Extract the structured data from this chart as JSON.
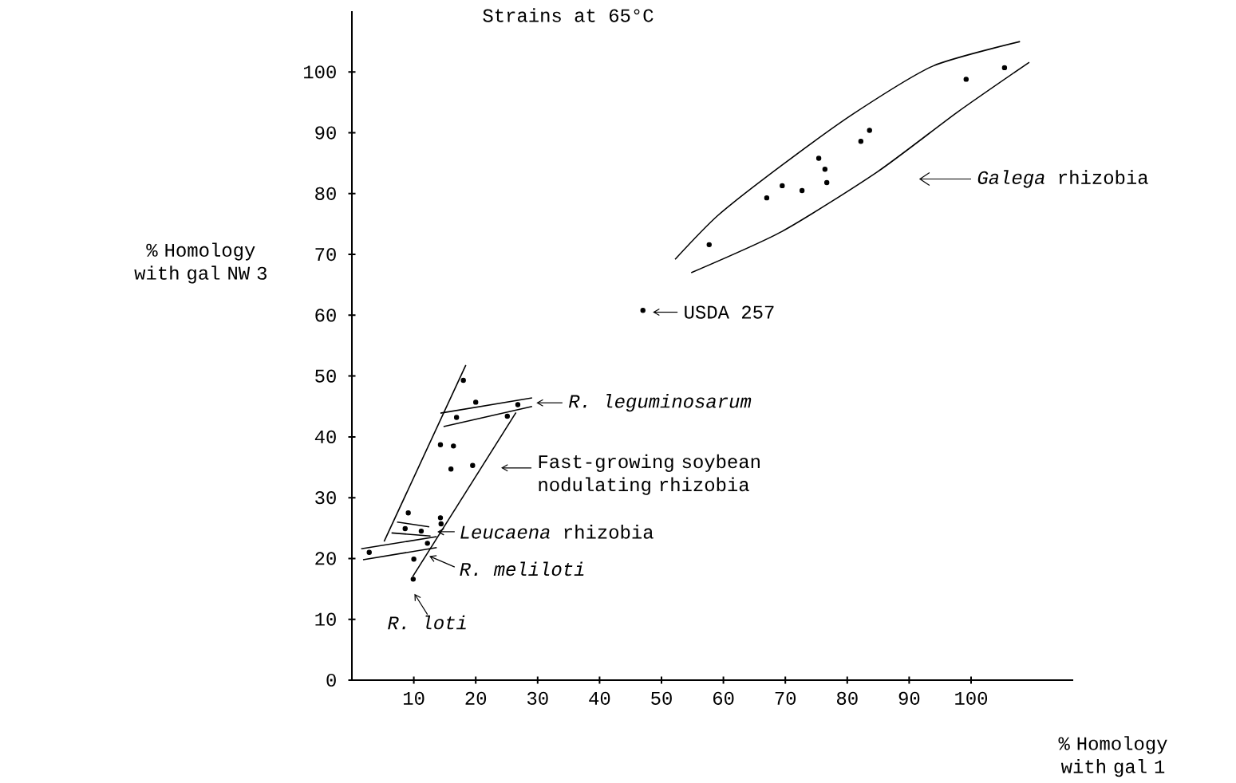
{
  "chart_data": {
    "type": "scatter",
    "title": "Strains at 65°C",
    "xlabel": "% Homology with gal 1",
    "ylabel": "% Homology with gal NW 3",
    "xlim": [
      0,
      116.5
    ],
    "ylim": [
      0,
      110
    ],
    "xticks": [
      10,
      20,
      30,
      40,
      50,
      60,
      70,
      80,
      90,
      100
    ],
    "yticks": [
      0,
      10,
      20,
      30,
      40,
      50,
      60,
      70,
      80,
      90,
      100
    ],
    "grid": false,
    "marker": "circle",
    "line_style": "solid",
    "series": [
      {
        "color": "#000000",
        "x": [
          18.0,
          20.0,
          26.8,
          16.9,
          25.1,
          14.3,
          16.4,
          16.0,
          19.5,
          9.1,
          14.3,
          14.4,
          8.6,
          11.2,
          12.2,
          2.8,
          10.0,
          9.9,
          47.0,
          57.7,
          67.0,
          69.5,
          72.7,
          75.4,
          76.4,
          76.7,
          82.2,
          83.6,
          99.2,
          105.4
        ],
        "values": [
          49.3,
          45.7,
          45.3,
          43.2,
          43.4,
          38.7,
          38.5,
          34.7,
          35.3,
          27.5,
          26.7,
          25.7,
          24.9,
          24.5,
          22.5,
          21.0,
          19.9,
          16.6,
          60.8,
          71.6,
          79.3,
          81.3,
          80.5,
          85.8,
          84.0,
          81.8,
          88.6,
          90.4,
          98.8,
          100.7
        ]
      },
      {
        "type": "line",
        "marker": "none",
        "color": "#000000",
        "x": [
          52.2,
          59.1,
          69.5,
          81.1,
          93.9,
          107.9
        ],
        "values": [
          69.2,
          76.4,
          84.7,
          93.2,
          101.0,
          105.0
        ]
      },
      {
        "type": "line",
        "marker": "none",
        "color": "#000000",
        "x": [
          54.8,
          69.5,
          84.9,
          97.8,
          109.4
        ],
        "values": [
          67.0,
          73.8,
          83.6,
          93.4,
          101.6
        ]
      },
      {
        "type": "line",
        "marker": "none",
        "color": "#000000",
        "x": [
          5.2,
          18.4
        ],
        "values": [
          22.8,
          51.8
        ]
      },
      {
        "type": "line",
        "marker": "none",
        "color": "#000000",
        "x": [
          9.8,
          26.5
        ],
        "values": [
          17.0,
          44.0
        ]
      },
      {
        "type": "line",
        "marker": "none",
        "color": "#000000",
        "x": [
          14.3,
          29.1
        ],
        "values": [
          43.9,
          46.4
        ]
      },
      {
        "type": "line",
        "marker": "none",
        "color": "#000000",
        "x": [
          14.8,
          29.1
        ],
        "values": [
          41.7,
          45.0
        ]
      },
      {
        "type": "line",
        "marker": "none",
        "color": "#000000",
        "x": [
          7.3,
          12.5
        ],
        "values": [
          26.0,
          25.2
        ]
      },
      {
        "type": "line",
        "marker": "none",
        "color": "#000000",
        "x": [
          6.4,
          12.7
        ],
        "values": [
          24.2,
          23.7
        ]
      },
      {
        "type": "line",
        "marker": "none",
        "color": "#000000",
        "x": [
          1.5,
          13.7
        ],
        "values": [
          21.6,
          23.6
        ]
      },
      {
        "type": "line",
        "marker": "none",
        "color": "#000000",
        "x": [
          1.8,
          13.7
        ],
        "values": [
          19.8,
          21.8
        ]
      }
    ],
    "annotations": [
      "*Galega* rhizobia",
      "USDA 257",
      "R. leguminosarum",
      "Fast-growing soybean nodulating rhizobia",
      "*Leucaena* rhizobia",
      "R. meliloti",
      "R. loti"
    ]
  }
}
